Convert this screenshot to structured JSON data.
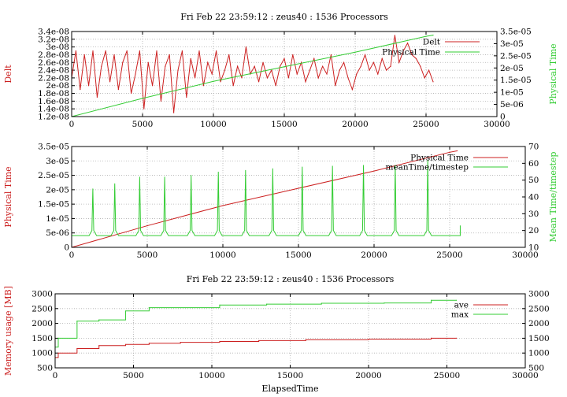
{
  "colors": {
    "red": "#cc2020",
    "green": "#33cc33",
    "grid": "#b0b0b0"
  },
  "chart_data": [
    {
      "type": "line",
      "title": "Fri Feb 22 23:59:12 : zeus40 : 1536 Processors",
      "xlabel": "",
      "ylabel": "Delt",
      "y2label": "Physical Time",
      "xlim": [
        0,
        30000
      ],
      "ylim": [
        1.2e-08,
        3.4e-08
      ],
      "y2lim": [
        0,
        3.5e-05
      ],
      "grid": true,
      "legend_position": "top-right",
      "xticks": [
        "0",
        "5000",
        "10000",
        "15000",
        "20000",
        "25000",
        "30000"
      ],
      "yticks": [
        "1.2e-08",
        "1.4e-08",
        "1.6e-08",
        "1.8e-08",
        "2e-08",
        "2.2e-08",
        "2.4e-08",
        "2.6e-08",
        "2.8e-08",
        "3e-08",
        "3.2e-08",
        "3.4e-08"
      ],
      "y2ticks": [
        "0",
        "5e-06",
        "1e-05",
        "1.5e-05",
        "2e-05",
        "2.5e-05",
        "3e-05",
        "3.5e-05"
      ],
      "series": [
        {
          "name": "Delt",
          "axis": "y",
          "color": "red",
          "x": [
            0,
            300,
            600,
            900,
            1200,
            1500,
            1800,
            2100,
            2400,
            2700,
            3000,
            3300,
            3600,
            3900,
            4200,
            4500,
            4800,
            5100,
            5400,
            5700,
            6000,
            6300,
            6600,
            6900,
            7200,
            7500,
            7800,
            8100,
            8400,
            8700,
            9000,
            9300,
            9600,
            9900,
            10200,
            10500,
            10800,
            11100,
            11400,
            11700,
            12000,
            12300,
            12600,
            12900,
            13200,
            13500,
            13800,
            14100,
            14400,
            14700,
            15000,
            15300,
            15600,
            15900,
            16200,
            16500,
            16800,
            17100,
            17400,
            17700,
            18000,
            18300,
            18600,
            18900,
            19200,
            19500,
            19800,
            20100,
            20400,
            20700,
            21000,
            21300,
            21600,
            21900,
            22200,
            22500,
            22800,
            23100,
            23400,
            23700,
            24000,
            24300,
            24600,
            24900,
            25200,
            25500
          ],
          "y": [
            2.2e-08,
            2.9e-08,
            1.9e-08,
            2.8e-08,
            2e-08,
            2.9e-08,
            1.7e-08,
            2.5e-08,
            2.9e-08,
            2.1e-08,
            2.8e-08,
            1.9e-08,
            2.6e-08,
            2.9e-08,
            1.8e-08,
            2.3e-08,
            2.9e-08,
            1.4e-08,
            2.6e-08,
            2e-08,
            2.9e-08,
            1.6e-08,
            2.5e-08,
            2.8e-08,
            1.3e-08,
            2.4e-08,
            2.9e-08,
            1.7e-08,
            2.7e-08,
            2.2e-08,
            2.9e-08,
            2e-08,
            2.6e-08,
            2.3e-08,
            2.9e-08,
            2.1e-08,
            2.4e-08,
            2.8e-08,
            2e-08,
            2.5e-08,
            2.2e-08,
            3e-08,
            2.3e-08,
            2.5e-08,
            2.1e-08,
            2.6e-08,
            2.2e-08,
            2.4e-08,
            2e-08,
            2.5e-08,
            2.7e-08,
            2.2e-08,
            2.8e-08,
            2.3e-08,
            2.6e-08,
            2.1e-08,
            2.4e-08,
            2.7e-08,
            2.2e-08,
            2.5e-08,
            2.3e-08,
            2.8e-08,
            2e-08,
            2.4e-08,
            2.6e-08,
            2.2e-08,
            1.9e-08,
            2.3e-08,
            2.5e-08,
            2.8e-08,
            2.4e-08,
            2.6e-08,
            2.3e-08,
            2.7e-08,
            2.4e-08,
            2.5e-08,
            3.3e-08,
            2.6e-08,
            2.9e-08,
            3.1e-08,
            2.8e-08,
            2.7e-08,
            2.5e-08,
            2.2e-08,
            2.4e-08,
            2.1e-08
          ]
        },
        {
          "name": "Physical Time",
          "axis": "y2",
          "color": "green",
          "x": [
            0,
            5000,
            10000,
            15000,
            20000,
            25000,
            25500
          ],
          "y": [
            0,
            7.5e-06,
            1.45e-05,
            2.05e-05,
            2.65e-05,
            3.3e-05,
            3.35e-05
          ]
        }
      ]
    },
    {
      "type": "line",
      "title": "",
      "xlabel": "",
      "ylabel": "Physical Time",
      "y2label": "Mean Time/timestep",
      "xlim": [
        0,
        30000
      ],
      "ylim": [
        0,
        3.5e-05
      ],
      "y2lim": [
        10,
        70
      ],
      "grid": true,
      "legend_position": "top-right",
      "xticks": [
        "0",
        "5000",
        "10000",
        "15000",
        "20000",
        "25000",
        "30000"
      ],
      "yticks": [
        "0",
        "5e-06",
        "1e-05",
        "1.5e-05",
        "2e-05",
        "2.5e-05",
        "3e-05",
        "3.5e-05"
      ],
      "y2ticks": [
        "10",
        "20",
        "30",
        "40",
        "50",
        "60",
        "70"
      ],
      "series": [
        {
          "name": "Physical Time",
          "axis": "y",
          "color": "red",
          "x": [
            0,
            5000,
            10000,
            15000,
            20000,
            25000,
            25500
          ],
          "y": [
            0,
            7.5e-06,
            1.45e-05,
            2.05e-05,
            2.65e-05,
            3.3e-05,
            3.35e-05
          ]
        },
        {
          "name": "meanTime/timestep",
          "axis": "y2",
          "color": "green",
          "baseline": 17,
          "spikes": [
            [
              1400,
              45
            ],
            [
              2850,
              48
            ],
            [
              4500,
              52
            ],
            [
              6150,
              52
            ],
            [
              7900,
              53
            ],
            [
              9700,
              55
            ],
            [
              11500,
              56
            ],
            [
              13300,
              57
            ],
            [
              15250,
              58
            ],
            [
              17250,
              58.5
            ],
            [
              19300,
              59
            ],
            [
              21400,
              59
            ],
            [
              23550,
              62
            ]
          ],
          "end_x": 25700,
          "end_y": 23
        }
      ]
    },
    {
      "type": "line",
      "title": "Fri Feb 22 23:59:12 : zeus40 : 1536 Processors",
      "xlabel": "ElapsedTime",
      "ylabel": "Memory usage [MB]",
      "y2label": "",
      "xlim": [
        0,
        30000
      ],
      "ylim": [
        500,
        3000
      ],
      "y2lim": [
        500,
        3000
      ],
      "grid": true,
      "legend_position": "top-right",
      "xticks": [
        "0",
        "5000",
        "10000",
        "15000",
        "20000",
        "25000",
        "30000"
      ],
      "yticks": [
        "500",
        "1000",
        "1500",
        "2000",
        "2500",
        "3000"
      ],
      "y2ticks": [
        "500",
        "1000",
        "1500",
        "2000",
        "2500",
        "3000"
      ],
      "series": [
        {
          "name": "ave",
          "axis": "y",
          "color": "red",
          "step": true,
          "x": [
            0,
            200,
            1400,
            2800,
            4500,
            6000,
            8000,
            10500,
            13000,
            16000,
            20000,
            24000,
            25600
          ],
          "y": [
            850,
            1000,
            1150,
            1250,
            1290,
            1330,
            1360,
            1390,
            1420,
            1450,
            1470,
            1500,
            1500
          ]
        },
        {
          "name": "max",
          "axis": "y",
          "color": "green",
          "step": true,
          "x": [
            0,
            200,
            1400,
            2800,
            4500,
            6000,
            10500,
            13500,
            17000,
            21000,
            24000,
            25600
          ],
          "y": [
            1200,
            1500,
            2080,
            2120,
            2420,
            2530,
            2620,
            2650,
            2680,
            2690,
            2780,
            2780
          ]
        }
      ]
    }
  ]
}
